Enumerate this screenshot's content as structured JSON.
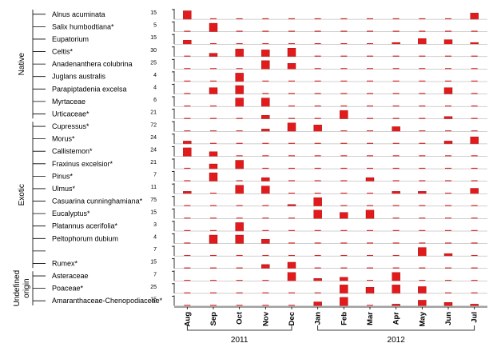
{
  "chart_data": {
    "type": "bar",
    "subtype": "pollen calendar (small multiples, one panel per taxon)",
    "colors": {
      "bar": "#e31a1c",
      "bar_edge": "#9b0000",
      "axis": "#000000"
    },
    "months": [
      "Aug",
      "Sep",
      "Oct",
      "Nov",
      "Dec",
      "Jan",
      "Feb",
      "Mar",
      "Apr",
      "May",
      "Jun",
      "Jul"
    ],
    "years": [
      {
        "label": "2011",
        "from": "Aug",
        "to": "Dec"
      },
      {
        "label": "2012",
        "from": "Jan",
        "to": "Jul"
      }
    ],
    "groups": [
      {
        "name": "Native",
        "first": 0,
        "last": 8
      },
      {
        "name": "Exotic",
        "first": 9,
        "last": 20
      },
      {
        "name": "Undefined origin",
        "lines": [
          "Undefined",
          "origin"
        ],
        "first": 21,
        "last": 23
      }
    ],
    "taxa": [
      {
        "name": "Alnus acuminata",
        "ymax": 15,
        "values": [
          15,
          0,
          0,
          0,
          0,
          0,
          0,
          0,
          0,
          0,
          0,
          11
        ]
      },
      {
        "name": "Salix humbodtiana*",
        "ymax": 5,
        "values": [
          0,
          5,
          0,
          0,
          0,
          0,
          0,
          0,
          0,
          0,
          0,
          0
        ]
      },
      {
        "name": "Eupatorium",
        "ymax": 15,
        "values": [
          7,
          0,
          0,
          0,
          0,
          0,
          0,
          0,
          3,
          10,
          8,
          3
        ]
      },
      {
        "name": "Celtis*",
        "ymax": 30,
        "values": [
          0,
          12,
          27,
          24,
          30,
          0,
          0,
          0,
          0,
          0,
          0,
          0
        ]
      },
      {
        "name": "Anadenanthera colubrina",
        "ymax": 25,
        "values": [
          0,
          0,
          0,
          25,
          17,
          0,
          0,
          0,
          0,
          0,
          0,
          0
        ]
      },
      {
        "name": "Juglans australis",
        "ymax": 4,
        "values": [
          0,
          0,
          4,
          0,
          0,
          0,
          0,
          0,
          0,
          0,
          0,
          0
        ]
      },
      {
        "name": "Parapiptadenia excelsa",
        "ymax": 4,
        "values": [
          0,
          3,
          4,
          0,
          0,
          0,
          0,
          0,
          0,
          0,
          3,
          0
        ]
      },
      {
        "name": "Myrtaceae",
        "ymax": 6,
        "values": [
          0,
          0,
          6,
          6,
          0,
          0,
          0,
          0,
          0,
          0,
          0,
          0
        ]
      },
      {
        "name": "Urticaceae*",
        "ymax": 21,
        "values": [
          0,
          0,
          0,
          9,
          0,
          0,
          21,
          0,
          0,
          0,
          6,
          0
        ]
      },
      {
        "name": "Cupressus*",
        "ymax": 72,
        "values": [
          0,
          0,
          0,
          20,
          72,
          55,
          0,
          0,
          40,
          0,
          0,
          0
        ]
      },
      {
        "name": "Morus*",
        "ymax": 24,
        "values": [
          8,
          0,
          0,
          0,
          0,
          0,
          0,
          0,
          0,
          0,
          8,
          20
        ]
      },
      {
        "name": "Callistemon*",
        "ymax": 24,
        "values": [
          24,
          13,
          0,
          0,
          0,
          0,
          0,
          0,
          0,
          0,
          0,
          0
        ]
      },
      {
        "name": "Fraxinus excelsior*",
        "ymax": 21,
        "values": [
          0,
          12,
          21,
          0,
          0,
          0,
          0,
          0,
          0,
          0,
          0,
          0
        ]
      },
      {
        "name": "Pinus*",
        "ymax": 7,
        "values": [
          0,
          7,
          0,
          3,
          0,
          0,
          0,
          3,
          0,
          0,
          0,
          0
        ]
      },
      {
        "name": "Ulmus*",
        "ymax": 11,
        "values": [
          3,
          0,
          11,
          10,
          0,
          0,
          0,
          0,
          3,
          3,
          0,
          7
        ]
      },
      {
        "name": "Casuarina cunninghamiana*",
        "ymax": 75,
        "values": [
          0,
          0,
          0,
          0,
          15,
          75,
          0,
          0,
          0,
          0,
          0,
          0
        ]
      },
      {
        "name": "Eucalyptus*",
        "ymax": 15,
        "values": [
          0,
          0,
          0,
          0,
          0,
          15,
          11,
          15,
          0,
          0,
          0,
          0
        ]
      },
      {
        "name": "Platannus acerifolia*",
        "ymax": 3,
        "values": [
          0,
          0,
          3,
          0,
          0,
          0,
          0,
          0,
          0,
          0,
          0,
          0
        ]
      },
      {
        "name": "Peltophorum dubium",
        "ymax": 4,
        "values": [
          0,
          4,
          4,
          2,
          0,
          0,
          0,
          0,
          0,
          0,
          0,
          0
        ]
      },
      {
        "name": "",
        "ymax": 7,
        "values": [
          0,
          0,
          0,
          0,
          0,
          0,
          0,
          0,
          0,
          7,
          2,
          0
        ]
      },
      {
        "name": "Rumex*",
        "ymax": 15,
        "values": [
          0,
          0,
          0,
          7,
          11,
          0,
          0,
          0,
          0,
          0,
          0,
          0
        ]
      },
      {
        "name": "Asteraceae",
        "ymax": 7,
        "values": [
          0,
          0,
          0,
          0,
          7,
          2,
          3,
          0,
          7,
          0,
          0,
          0
        ]
      },
      {
        "name": "Poaceae*",
        "ymax": 25,
        "values": [
          0,
          0,
          0,
          0,
          0,
          0,
          25,
          18,
          25,
          20,
          0,
          0
        ]
      },
      {
        "name": "Amaranthaceae-Chenopodiaceae*",
        "ymax": 15,
        "values": [
          0,
          0,
          0,
          0,
          0,
          7,
          15,
          0,
          3,
          10,
          6,
          3
        ]
      }
    ]
  }
}
